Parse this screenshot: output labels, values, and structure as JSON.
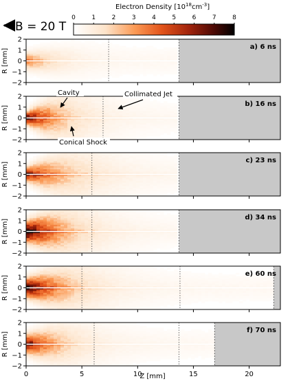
{
  "figure": {
    "colorbar": {
      "title": "Electron Density [10",
      "title_sup": "18",
      "title_unit": "cm",
      "title_unit_sup": "-3",
      "title_end": "]",
      "ticks": [
        "0",
        "1",
        "2",
        "3",
        "4",
        "5",
        "6",
        "7",
        "8"
      ],
      "min": 0,
      "max": 8
    },
    "field_label": "B = 20 T",
    "x_axis": {
      "label": "Z [mm]",
      "ticks": [
        "0",
        "5",
        "10",
        "15",
        "20"
      ],
      "min": 0,
      "max": 22.8
    },
    "y_axis": {
      "label": "R [mm]",
      "ticks": [
        "2",
        "1",
        "0",
        "−1",
        "−2"
      ],
      "min": -2,
      "max": 2
    },
    "panels": [
      {
        "label": "a) 6 ns",
        "gray_from_z": 13.7,
        "front_z": 7.4,
        "secondary_z": null,
        "density_peak": 3.2,
        "decay_mm": 2.2,
        "width_mm": 0.45,
        "spread_per_mm": 0.05,
        "jet": 0.6
      },
      {
        "label": "b) 16 ns",
        "gray_from_z": 13.7,
        "front_z": 6.9,
        "secondary_z": null,
        "density_peak": 6.5,
        "decay_mm": 2.6,
        "width_mm": 0.35,
        "spread_per_mm": 0.12,
        "jet": 1.2
      },
      {
        "label": "c) 23 ns",
        "gray_from_z": 13.7,
        "front_z": 5.9,
        "secondary_z": null,
        "density_peak": 5.2,
        "decay_mm": 3.4,
        "width_mm": 0.4,
        "spread_per_mm": 0.1,
        "jet": 1.6
      },
      {
        "label": "d) 34 ns",
        "gray_from_z": 13.7,
        "front_z": 5.9,
        "secondary_z": null,
        "density_peak": 7.5,
        "decay_mm": 2.8,
        "width_mm": 0.6,
        "spread_per_mm": 0.09,
        "jet": 1.8
      },
      {
        "label": "e) 60 ns",
        "gray_from_z": 22.2,
        "front_z": 5.0,
        "secondary_z": 13.8,
        "density_peak": 7.0,
        "decay_mm": 3.0,
        "width_mm": 0.55,
        "spread_per_mm": 0.08,
        "jet": 1.5
      },
      {
        "label": "f) 70 ns",
        "gray_from_z": 16.9,
        "front_z": 6.1,
        "secondary_z": 13.7,
        "density_peak": 6.0,
        "decay_mm": 2.6,
        "width_mm": 0.55,
        "spread_per_mm": 0.08,
        "jet": 1.2
      }
    ],
    "annotations": {
      "cavity": "Cavity",
      "collimated_jet": "Collimated Jet",
      "conical_shock": "Conical Shock"
    }
  }
}
